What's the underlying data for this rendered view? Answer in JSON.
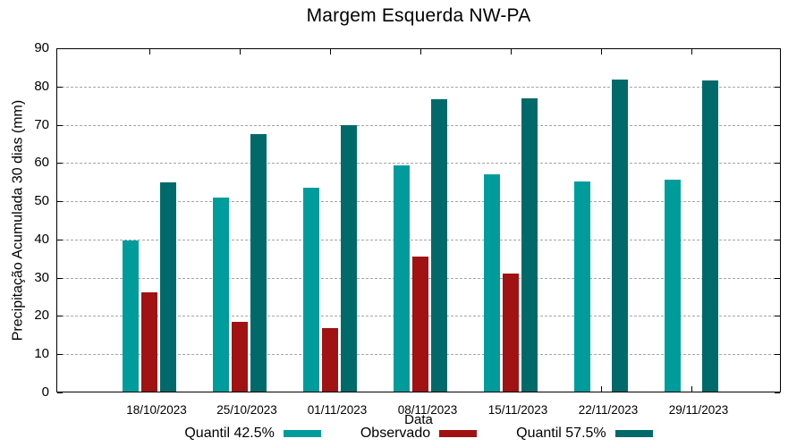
{
  "chart_data": {
    "type": "bar",
    "title": "Margem Esquerda NW-PA",
    "xlabel": "Data",
    "ylabel": "Precipitação Acumulada 30 dias (mm)",
    "ylim": [
      0,
      90
    ],
    "ytick_step": 10,
    "grid": true,
    "grid_style": "dashed-gray-horizontal",
    "legend_position": "bottom-center",
    "categories": [
      "18/10/2023",
      "25/10/2023",
      "01/11/2023",
      "08/11/2023",
      "15/11/2023",
      "22/11/2023",
      "29/11/2023"
    ],
    "series": [
      {
        "name": "Quantil 42.5%",
        "color": "#009C9C",
        "values": [
          39.4,
          50.7,
          53.3,
          59.1,
          56.7,
          55.0,
          55.4
        ]
      },
      {
        "name": "Observado",
        "color": "#A11212",
        "values": [
          26.0,
          18.3,
          16.6,
          35.3,
          30.9,
          null,
          null
        ]
      },
      {
        "name": "Quantil 57.5%",
        "color": "#006A6A",
        "values": [
          54.6,
          67.3,
          69.7,
          76.5,
          76.6,
          81.6,
          81.3
        ]
      }
    ]
  }
}
